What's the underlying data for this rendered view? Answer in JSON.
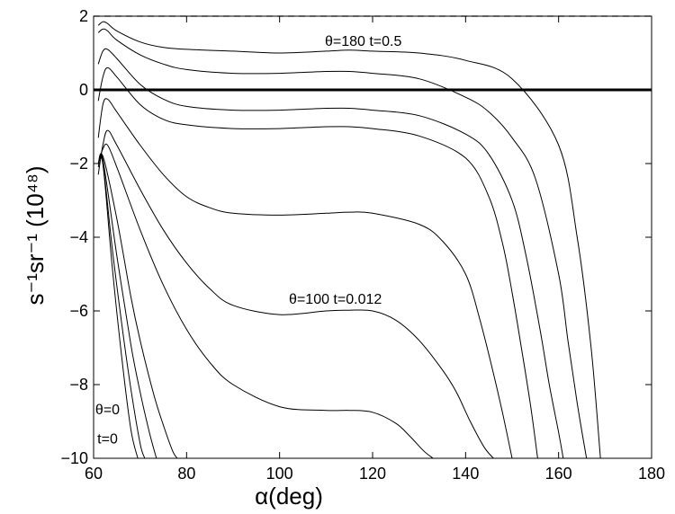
{
  "chart_data": {
    "type": "line",
    "xlabel": "α(deg)",
    "ylabel": "s⁻¹sr⁻¹ (10⁴⁸)",
    "xlim": [
      60,
      180
    ],
    "ylim": [
      -10,
      2
    ],
    "xticks": [
      60,
      80,
      100,
      120,
      140,
      160,
      180
    ],
    "yticks": [
      -10,
      -8,
      -6,
      -4,
      -2,
      0,
      2
    ],
    "grid": false,
    "reference_lines": [
      {
        "y": 2,
        "style": "dashed"
      },
      {
        "y": 0,
        "style": "solid-thick"
      }
    ],
    "annotations": [
      {
        "text": "θ=180 t=0.5",
        "x": 118,
        "y": 1.2
      },
      {
        "text": "θ=100 t=0.012",
        "x": 112,
        "y": -5.8
      },
      {
        "text": "θ=0",
        "x": 63,
        "y": -8.8
      },
      {
        "text": "t=0",
        "x": 63,
        "y": -9.6
      }
    ],
    "series": [
      {
        "x": [
          61,
          62,
          63,
          65,
          70,
          75,
          80,
          90,
          100,
          110,
          115,
          120,
          130,
          140,
          150,
          160,
          164,
          167,
          169
        ],
        "y": [
          1.75,
          1.85,
          1.8,
          1.6,
          1.3,
          1.15,
          1.1,
          1.05,
          1.0,
          1.05,
          1.08,
          1.05,
          1.0,
          0.8,
          0.3,
          -1.5,
          -4.0,
          -7.0,
          -10
        ]
      },
      {
        "x": [
          61,
          62,
          63,
          65,
          70,
          75,
          80,
          90,
          100,
          110,
          115,
          120,
          130,
          140,
          145,
          150,
          155,
          160,
          162,
          164,
          166
        ],
        "y": [
          1.55,
          1.65,
          1.6,
          1.35,
          0.95,
          0.7,
          0.55,
          0.45,
          0.45,
          0.5,
          0.5,
          0.45,
          0.3,
          -0.2,
          -0.6,
          -1.3,
          -2.4,
          -5.0,
          -6.8,
          -8.5,
          -10
        ]
      },
      {
        "x": [
          61,
          62,
          63,
          65,
          70,
          75,
          80,
          90,
          100,
          110,
          115,
          120,
          130,
          140,
          145,
          150,
          153,
          156,
          158,
          160,
          161
        ],
        "y": [
          0.7,
          1.05,
          1.1,
          0.85,
          0.15,
          -0.25,
          -0.45,
          -0.55,
          -0.55,
          -0.5,
          -0.5,
          -0.55,
          -0.7,
          -1.2,
          -1.75,
          -3.0,
          -4.5,
          -6.5,
          -8.0,
          -9.3,
          -10
        ]
      },
      {
        "x": [
          61,
          62,
          63,
          65,
          70,
          75,
          80,
          90,
          100,
          110,
          115,
          120,
          130,
          140,
          145,
          148,
          150,
          152,
          154,
          155.5
        ],
        "y": [
          -0.3,
          0.35,
          0.6,
          0.35,
          -0.4,
          -0.8,
          -0.95,
          -1.05,
          -1.05,
          -1.0,
          -1.0,
          -1.05,
          -1.25,
          -1.85,
          -2.9,
          -4.2,
          -5.5,
          -7.0,
          -8.6,
          -10
        ]
      },
      {
        "x": [
          61,
          62,
          63,
          65,
          70,
          75,
          80,
          85,
          90,
          100,
          110,
          115,
          120,
          130,
          135,
          140,
          143,
          146,
          148,
          150
        ],
        "y": [
          -1.3,
          -0.4,
          -0.25,
          -0.6,
          -1.5,
          -2.3,
          -2.9,
          -3.2,
          -3.35,
          -3.4,
          -3.35,
          -3.32,
          -3.35,
          -3.65,
          -4.1,
          -5.0,
          -6.2,
          -7.7,
          -8.8,
          -10
        ]
      },
      {
        "x": [
          61,
          62,
          63,
          65,
          70,
          75,
          80,
          85,
          90,
          100,
          110,
          115,
          120,
          125,
          130,
          135,
          138,
          141,
          144,
          146
        ],
        "y": [
          -2.3,
          -1.5,
          -1.1,
          -1.5,
          -2.7,
          -3.8,
          -4.7,
          -5.4,
          -5.85,
          -6.1,
          -6.0,
          -5.98,
          -6.0,
          -6.25,
          -6.8,
          -7.6,
          -8.2,
          -9.0,
          -9.7,
          -10
        ]
      },
      {
        "x": [
          61,
          62,
          63,
          65,
          70,
          75,
          80,
          85,
          90,
          100,
          110,
          115,
          120,
          125,
          128,
          131,
          133
        ],
        "y": [
          -2.0,
          -1.6,
          -1.5,
          -2.1,
          -3.8,
          -5.3,
          -6.5,
          -7.4,
          -8.0,
          -8.6,
          -8.7,
          -8.7,
          -8.75,
          -9.05,
          -9.4,
          -9.8,
          -10
        ]
      },
      {
        "x": [
          61,
          62,
          65,
          68,
          70,
          73,
          75,
          77,
          78
        ],
        "y": [
          -2.1,
          -1.8,
          -3.5,
          -5.6,
          -6.8,
          -8.3,
          -9.1,
          -9.8,
          -10
        ]
      },
      {
        "x": [
          61,
          62,
          65,
          68,
          70,
          72,
          73.5
        ],
        "y": [
          -2.0,
          -1.9,
          -4.5,
          -6.9,
          -8.2,
          -9.3,
          -10
        ]
      },
      {
        "x": [
          61,
          62,
          64,
          66,
          68,
          70,
          71
        ],
        "y": [
          -2.0,
          -2.0,
          -4.3,
          -6.3,
          -8.1,
          -9.6,
          -10
        ]
      },
      {
        "x": [
          61,
          62,
          64,
          66,
          68,
          69.5
        ],
        "y": [
          -2.0,
          -2.0,
          -4.8,
          -7.2,
          -9.2,
          -10
        ]
      }
    ]
  }
}
